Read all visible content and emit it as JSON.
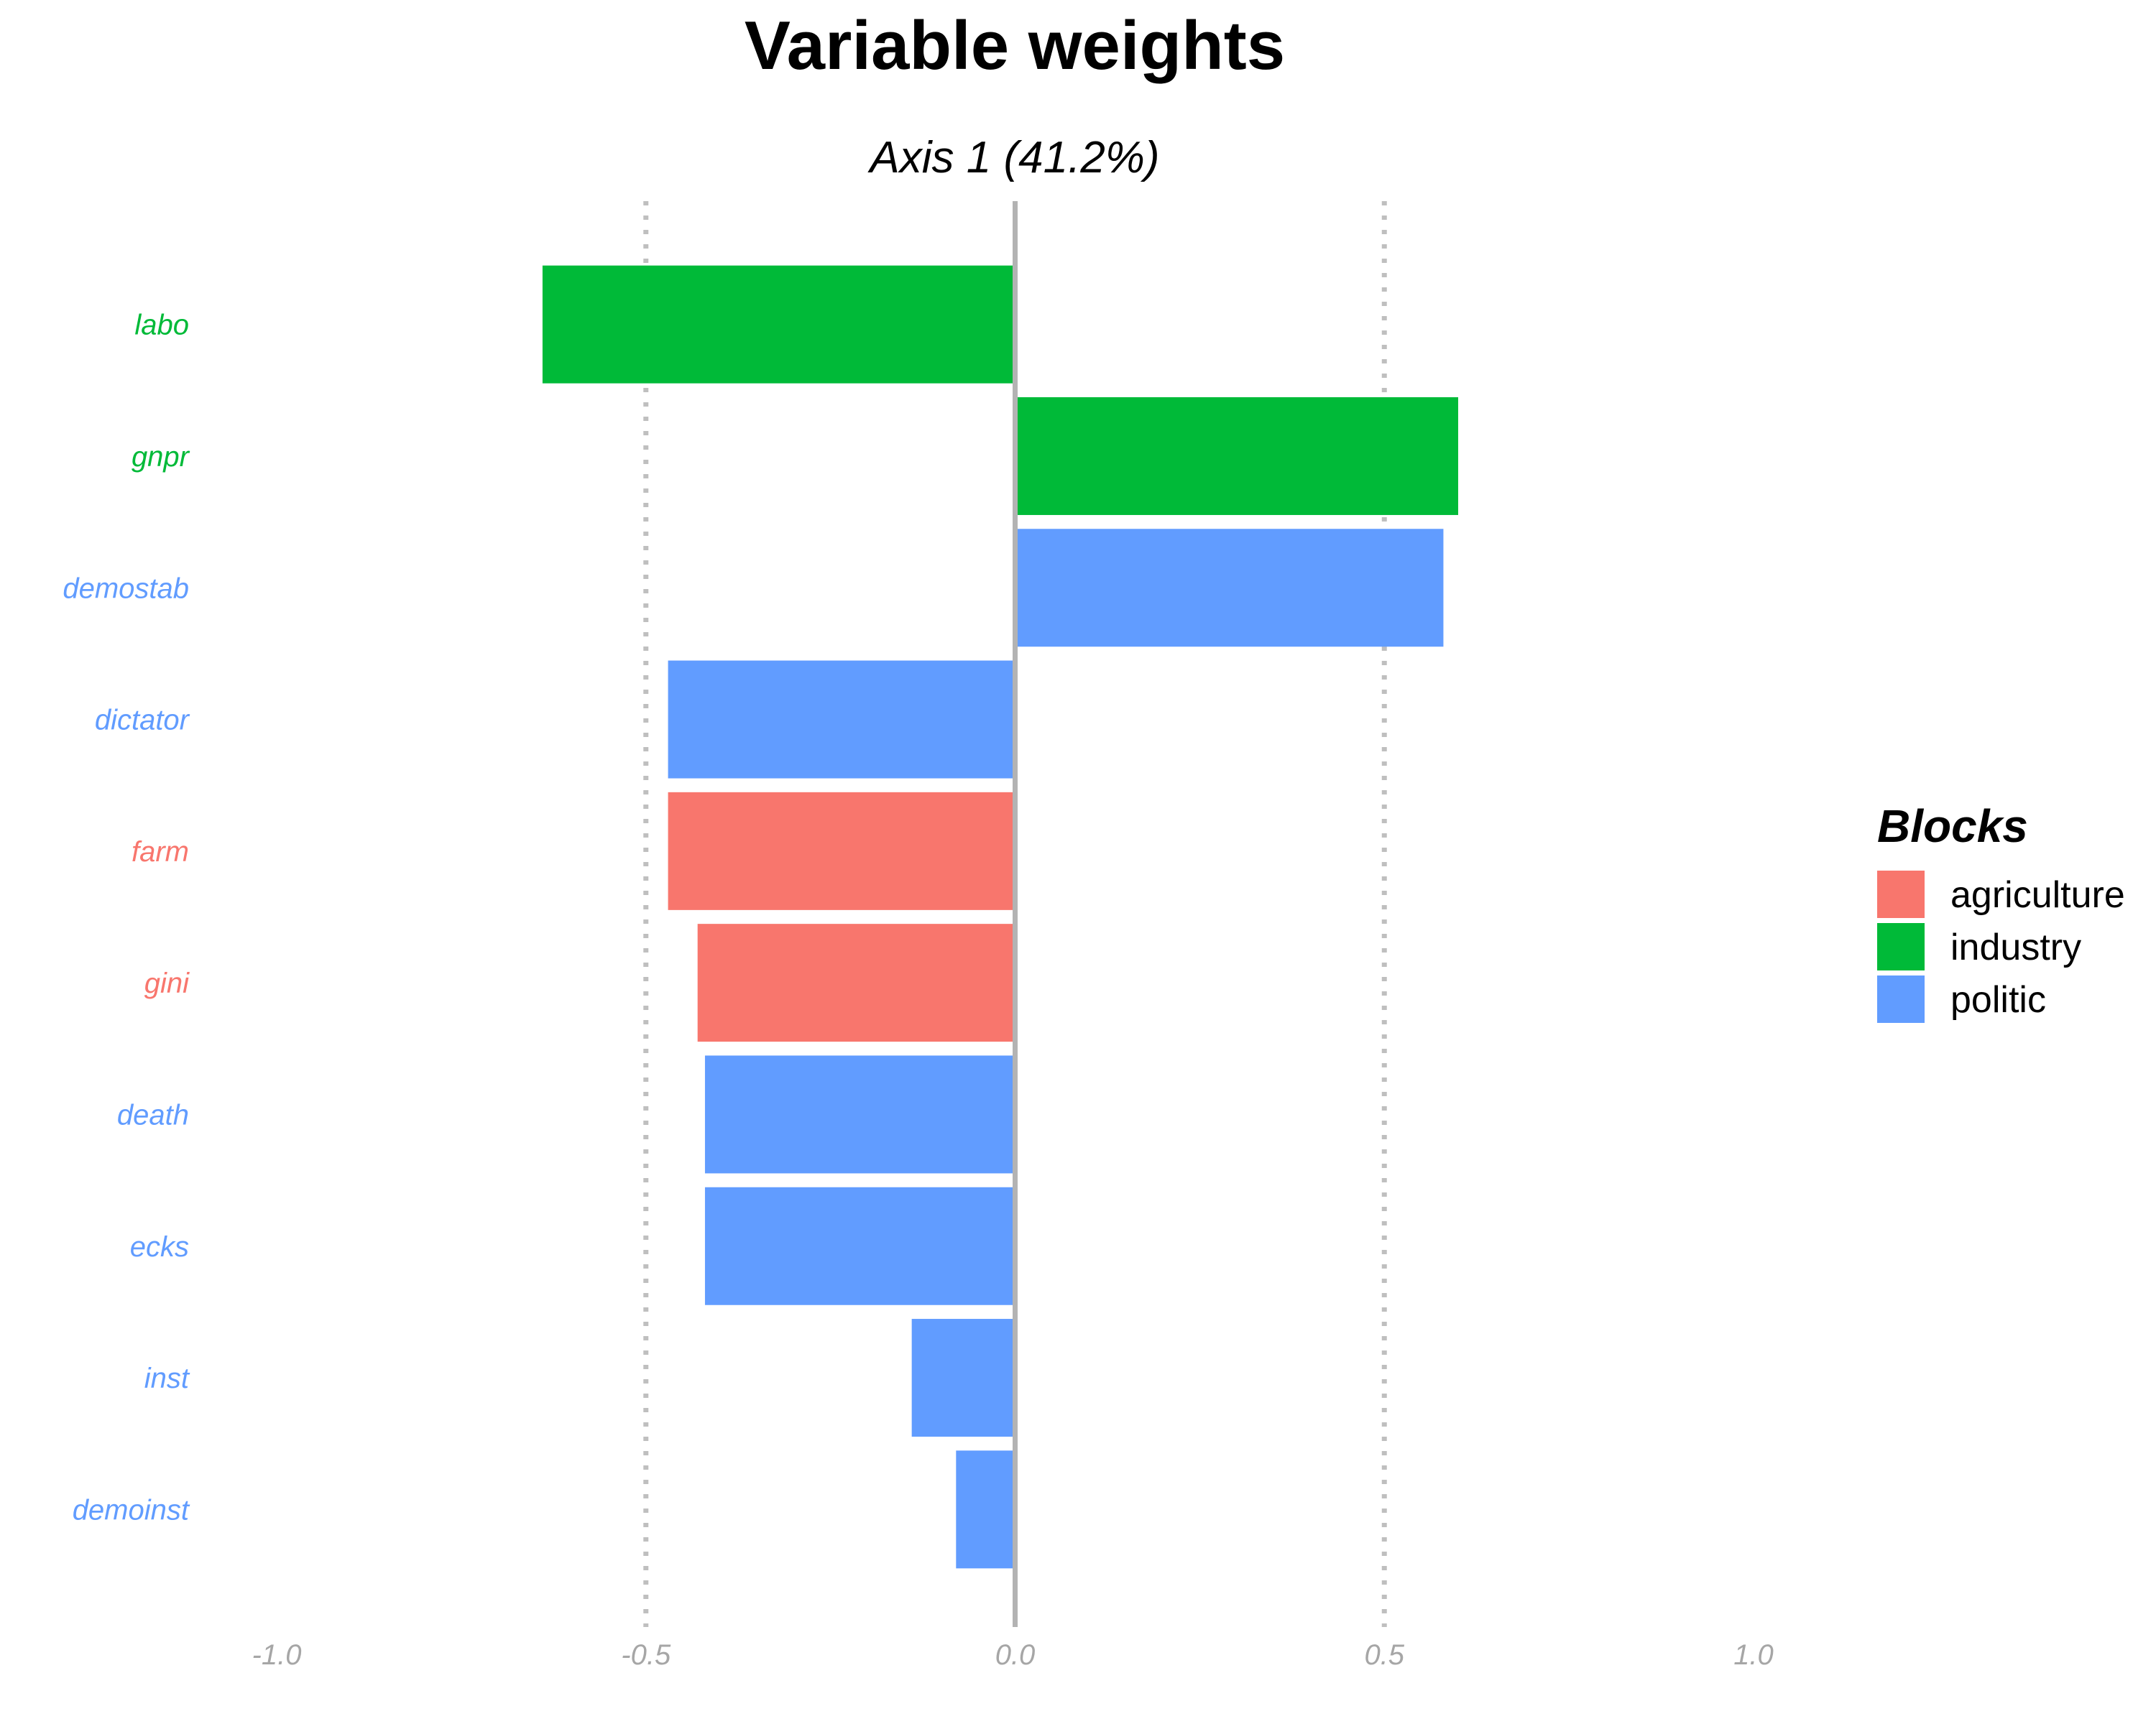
{
  "chart_data": {
    "type": "bar",
    "orientation": "horizontal",
    "title": "Variable weights",
    "subtitle": "Axis 1 (41.2%)",
    "xlabel": "",
    "ylabel": "",
    "xlim": [
      -1.0,
      1.0
    ],
    "x_ticks": [
      "-1.0",
      "-0.5",
      "0.0",
      "0.5",
      "1.0"
    ],
    "x_tick_values": [
      -1.0,
      -0.5,
      0.0,
      0.5,
      1.0
    ],
    "dotted_reference_lines": [
      -0.5,
      0.5
    ],
    "zero_line": 0.0,
    "grid": false,
    "categories": [
      "labo",
      "gnpr",
      "demostab",
      "dictator",
      "farm",
      "gini",
      "death",
      "ecks",
      "inst",
      "demoinst"
    ],
    "values": [
      -0.64,
      0.6,
      0.58,
      -0.47,
      -0.47,
      -0.43,
      -0.42,
      -0.42,
      -0.14,
      -0.08
    ],
    "groups": [
      "industry",
      "industry",
      "politic",
      "politic",
      "agriculture",
      "agriculture",
      "politic",
      "politic",
      "politic",
      "politic"
    ],
    "legend": {
      "title": "Blocks",
      "position": "right",
      "entries": [
        {
          "name": "agriculture",
          "color": "#F8766D"
        },
        {
          "name": "industry",
          "color": "#00BA38"
        },
        {
          "name": "politic",
          "color": "#619CFF"
        }
      ]
    }
  }
}
